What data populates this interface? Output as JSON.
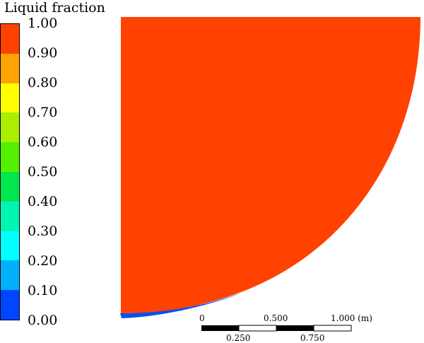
{
  "legend": {
    "title": "Liquid fraction",
    "swatch_colors": [
      "#ff4200",
      "#ffa300",
      "#ffff00",
      "#a8f000",
      "#55f000",
      "#00e64d",
      "#00f5b0",
      "#00ffff",
      "#00b0ff",
      "#0045ff"
    ],
    "tick_labels": [
      "1.00",
      "0.90",
      "0.80",
      "0.70",
      "0.60",
      "0.50",
      "0.40",
      "0.30",
      "0.20",
      "0.10",
      "0.00"
    ]
  },
  "contour": {
    "fill_color": "#ff4200",
    "edge_color": "#0a50f0"
  },
  "scale_bar": {
    "top_labels": [
      "0",
      "0.500",
      "1.000 (m)"
    ],
    "bottom_labels": [
      "0.250",
      "0.750"
    ]
  }
}
